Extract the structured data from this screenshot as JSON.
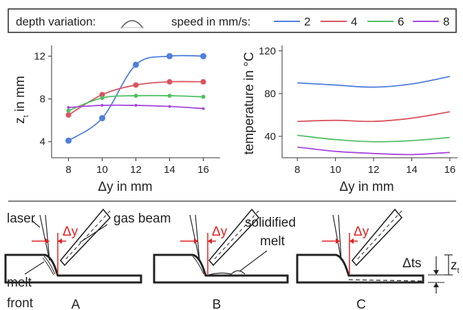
{
  "legend": {
    "depth_label": "depth variation:",
    "speed_label": "speed in mm/s:",
    "depth_icon": "arc-icon",
    "entries": [
      "2",
      "4",
      "6",
      "8"
    ]
  },
  "colors": {
    "s2": "#4f7fdd",
    "s4": "#d9545e",
    "s6": "#4fc063",
    "s8": "#a547de"
  },
  "chart_data": [
    {
      "type": "scatter",
      "xlabel": "Δy in mm",
      "ylabel_main": "z",
      "ylabel_sub": "t",
      "ylabel_rest": " in mm",
      "xlim": [
        7,
        17
      ],
      "ylim": [
        2.5,
        13
      ],
      "xticks": [
        8,
        10,
        12,
        14,
        16
      ],
      "yticks": [
        4,
        8,
        12
      ],
      "grid": false,
      "series": [
        {
          "name": "2",
          "color": "#4f7fdd",
          "x": [
            8,
            10,
            12,
            14,
            16
          ],
          "y": [
            4.1,
            6.2,
            11.2,
            12.0,
            12.0
          ],
          "marker_r": 4.5
        },
        {
          "name": "4",
          "color": "#d9545e",
          "x": [
            8,
            10,
            12,
            14,
            16
          ],
          "y": [
            6.5,
            8.4,
            9.3,
            9.6,
            9.6
          ],
          "marker_r": 4
        },
        {
          "name": "6",
          "color": "#4fc063",
          "x": [
            8,
            10,
            12,
            14,
            16
          ],
          "y": [
            6.9,
            8.1,
            8.3,
            8.3,
            8.2
          ],
          "marker_r": 3
        },
        {
          "name": "8",
          "color": "#a547de",
          "x": [
            8,
            10,
            12,
            14,
            16
          ],
          "y": [
            7.2,
            7.4,
            7.4,
            7.3,
            7.1
          ],
          "marker_r": 2
        }
      ]
    },
    {
      "type": "line",
      "xlabel": "Δy in mm",
      "ylabel": "temperature in °C",
      "xlim": [
        7.2,
        16.4
      ],
      "ylim": [
        20,
        125
      ],
      "xticks": [
        8,
        10,
        12,
        14,
        16
      ],
      "yticks": [
        40,
        80,
        120
      ],
      "grid": false,
      "series": [
        {
          "name": "2",
          "color": "#4f7fdd",
          "x": [
            8,
            10,
            12,
            14,
            16
          ],
          "y": [
            90,
            88,
            86,
            89,
            96
          ]
        },
        {
          "name": "4",
          "color": "#d9545e",
          "x": [
            8,
            10,
            12,
            14,
            16
          ],
          "y": [
            54,
            55,
            54,
            57,
            63
          ]
        },
        {
          "name": "6",
          "color": "#4fc063",
          "x": [
            8,
            10,
            12,
            14,
            16
          ],
          "y": [
            41,
            37,
            35,
            36,
            39
          ]
        },
        {
          "name": "8",
          "color": "#a547de",
          "x": [
            8,
            10,
            12,
            14,
            16
          ],
          "y": [
            30,
            26,
            24,
            23,
            25
          ]
        }
      ]
    }
  ],
  "schematic": {
    "labels": {
      "laser": "laser",
      "delta_y": "Δy",
      "gas_beam": "gas beam",
      "melt": "melt",
      "front": "front",
      "solidified": "solidified",
      "melt2": "melt",
      "delta_ts": "Δts",
      "zt_main": "z",
      "zt_sub": "t"
    },
    "panels": [
      "A",
      "B",
      "C"
    ]
  }
}
